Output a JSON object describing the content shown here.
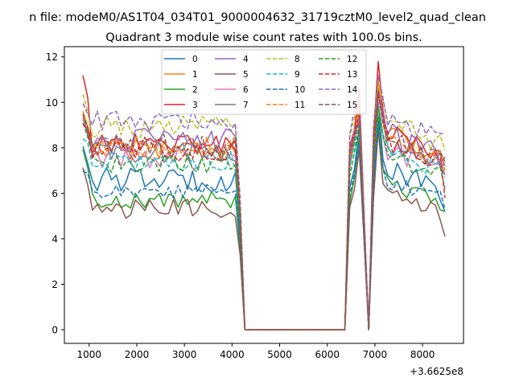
{
  "suptitle": "n file: modeM0/AS1T04_034T01_9000004632_31719cztM0_level2_quad_clean",
  "chart_data": {
    "type": "line",
    "title": "Quadrant 3 module wise count rates with 100.0s bins.",
    "xlabel": "",
    "ylabel": "",
    "xlim": [
      480,
      8860
    ],
    "ylim": [
      -0.6,
      12.45
    ],
    "x_offset_label": "+3.6625e8",
    "x_ticks": [
      1000,
      2000,
      3000,
      4000,
      5000,
      6000,
      7000,
      8000
    ],
    "x_tick_labels": [
      "1000",
      "2000",
      "3000",
      "4000",
      "5000",
      "6000",
      "7000",
      "8000"
    ],
    "y_ticks": [
      0,
      2,
      4,
      6,
      8,
      10,
      12
    ],
    "y_tick_labels": [
      "0",
      "2",
      "4",
      "6",
      "8",
      "10",
      "12"
    ],
    "legend_location": "upper center",
    "x_start": 870,
    "x_step": 100,
    "n_points": 77,
    "notes": "Values before ~4200 and after ~6450 fluctuate around the listed baselines; between 4250 and 6350 all modules read 0. Spikes at ~6700 and ~7050, dip to 0 at ~6900.",
    "series": [
      {
        "name": "0",
        "style": "solid",
        "color": "#1f77b4",
        "baseline": 6.6,
        "spread": 0.55,
        "start": 8.1,
        "peak_a": 9.0,
        "peak_b": 10.0,
        "post": 7.0,
        "end": 5.2
      },
      {
        "name": "1",
        "style": "solid",
        "color": "#ff7f0e",
        "baseline": 8.0,
        "spread": 0.5,
        "start": 9.6,
        "peak_a": 10.2,
        "peak_b": 11.0,
        "post": 8.6,
        "end": 6.9
      },
      {
        "name": "2",
        "style": "solid",
        "color": "#2ca02c",
        "baseline": 5.7,
        "spread": 0.4,
        "start": 7.9,
        "peak_a": 8.4,
        "peak_b": 9.4,
        "post": 6.4,
        "end": 5.2
      },
      {
        "name": "3",
        "style": "solid",
        "color": "#d62728",
        "baseline": 8.2,
        "spread": 0.5,
        "start": 11.1,
        "peak_a": 10.5,
        "peak_b": 11.8,
        "post": 8.8,
        "end": 7.6
      },
      {
        "name": "4",
        "style": "solid",
        "color": "#9467bd",
        "baseline": 8.3,
        "spread": 0.55,
        "start": 9.2,
        "peak_a": 9.6,
        "peak_b": 10.6,
        "post": 8.7,
        "end": 7.3
      },
      {
        "name": "5",
        "style": "solid",
        "color": "#8c564b",
        "baseline": 5.3,
        "spread": 0.45,
        "start": 7.0,
        "peak_a": 8.0,
        "peak_b": 8.8,
        "post": 6.0,
        "end": 4.1
      },
      {
        "name": "6",
        "style": "solid",
        "color": "#e377c2",
        "baseline": 7.5,
        "spread": 0.45,
        "start": 9.1,
        "peak_a": 9.3,
        "peak_b": 10.1,
        "post": 8.0,
        "end": 6.8
      },
      {
        "name": "7",
        "style": "solid",
        "color": "#7f7f7f",
        "baseline": 7.8,
        "spread": 0.45,
        "start": 9.3,
        "peak_a": 9.6,
        "peak_b": 10.4,
        "post": 8.3,
        "end": 7.2
      },
      {
        "name": "8",
        "style": "dashed",
        "color": "#bcbd22",
        "baseline": 8.9,
        "spread": 0.5,
        "start": 10.1,
        "peak_a": 10.0,
        "peak_b": 10.9,
        "post": 9.2,
        "end": 7.9
      },
      {
        "name": "9",
        "style": "dashed",
        "color": "#17becf",
        "baseline": 7.4,
        "spread": 0.45,
        "start": 8.6,
        "peak_a": 9.1,
        "peak_b": 9.9,
        "post": 7.9,
        "end": 6.7
      },
      {
        "name": "10",
        "style": "dashed",
        "color": "#1f77b4",
        "baseline": 6.1,
        "spread": 0.35,
        "start": 7.1,
        "peak_a": 8.2,
        "peak_b": 9.1,
        "post": 6.6,
        "end": 5.3
      },
      {
        "name": "11",
        "style": "dashed",
        "color": "#ff7f0e",
        "baseline": 8.0,
        "spread": 0.5,
        "start": 9.6,
        "peak_a": 9.8,
        "peak_b": 10.6,
        "post": 8.5,
        "end": 7.0
      },
      {
        "name": "12",
        "style": "dashed",
        "color": "#2ca02c",
        "baseline": 7.3,
        "spread": 0.45,
        "start": 9.2,
        "peak_a": 8.9,
        "peak_b": 9.8,
        "post": 7.7,
        "end": 6.2
      },
      {
        "name": "13",
        "style": "dashed",
        "color": "#d62728",
        "baseline": 7.9,
        "spread": 0.5,
        "start": 9.1,
        "peak_a": 9.4,
        "peak_b": 10.4,
        "post": 8.4,
        "end": 5.8
      },
      {
        "name": "14",
        "style": "dashed",
        "color": "#9467bd",
        "baseline": 9.2,
        "spread": 0.5,
        "start": 10.0,
        "peak_a": 10.3,
        "peak_b": 11.2,
        "post": 9.4,
        "end": 8.6
      },
      {
        "name": "15",
        "style": "dashed",
        "color": "#8c564b",
        "baseline": 8.1,
        "spread": 0.5,
        "start": 9.5,
        "peak_a": 9.2,
        "peak_b": 10.5,
        "post": 8.5,
        "end": 7.4
      }
    ]
  }
}
